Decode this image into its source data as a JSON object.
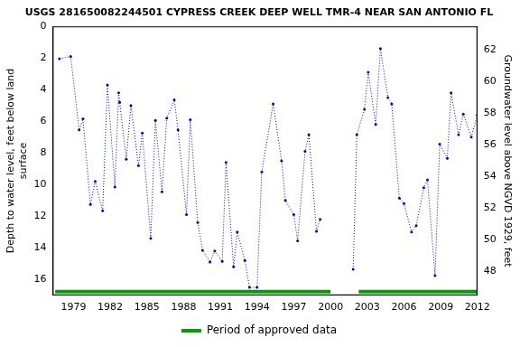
{
  "chart_data": {
    "type": "line",
    "title": "USGS 281650082244501 CYPRESS CREEK DEEP WELL TMR-4 NEAR SAN ANTONIO FL",
    "y_label": [
      "Depth to water level, feet below land",
      "surface"
    ],
    "y2_label": "Groundwater level above NGVD 1929, feet",
    "x": [
      1977.85,
      1978.77,
      1979.46,
      1979.77,
      1980.38,
      1980.77,
      1981.38,
      1981.77,
      1982.38,
      1982.69,
      1982.77,
      1983.31,
      1983.69,
      1984.31,
      1984.62,
      1985.31,
      1985.69,
      1986.23,
      1986.62,
      1987.23,
      1987.54,
      1988.23,
      1988.54,
      1989.15,
      1989.54,
      1990.15,
      1990.54,
      1991.15,
      1991.46,
      1992.08,
      1992.38,
      1993.0,
      1993.38,
      1994.0,
      1994.38,
      1995.31,
      1996.0,
      1996.31,
      1997.0,
      1997.31,
      1997.92,
      1998.23,
      1998.85,
      1999.15,
      2000.5,
      2001.85,
      2002.15,
      2002.77,
      2003.08,
      2003.69,
      2004.08,
      2004.69,
      2005.0,
      2005.62,
      2006.0,
      2006.62,
      2007.0,
      2007.62,
      2007.92,
      2008.54,
      2008.92,
      2009.54,
      2009.85,
      2010.46,
      2010.85,
      2011.5,
      2012.0
    ],
    "series": [
      {
        "color": "#0000cc",
        "marker": "circle",
        "line_style": "dotted",
        "values": [
          2.05,
          1.9,
          6.55,
          5.85,
          11.25,
          9.8,
          11.65,
          3.7,
          10.15,
          4.2,
          4.8,
          8.4,
          5.0,
          8.8,
          6.75,
          13.4,
          5.95,
          10.45,
          5.8,
          4.65,
          6.55,
          11.9,
          5.9,
          12.4,
          14.15,
          14.9,
          14.2,
          14.85,
          8.6,
          15.2,
          13.0,
          14.8,
          16.5,
          16.5,
          9.2,
          4.9,
          8.5,
          11.0,
          11.9,
          13.55,
          7.9,
          6.85,
          12.95,
          12.2,
          null,
          15.35,
          6.85,
          5.25,
          2.9,
          6.2,
          1.4,
          4.5,
          4.9,
          10.85,
          11.2,
          13.0,
          12.6,
          10.2,
          9.7,
          15.75,
          7.45,
          8.35,
          4.2,
          6.85,
          5.55,
          7.0,
          5.6
        ]
      }
    ],
    "xlim": [
      1977.3,
      2012.0
    ],
    "xticks": [
      1979,
      1982,
      1985,
      1988,
      1991,
      1994,
      1997,
      2000,
      2003,
      2006,
      2009,
      2012
    ],
    "ylim": [
      17,
      0
    ],
    "yticks": [
      0,
      2,
      4,
      6,
      8,
      10,
      12,
      14,
      16
    ],
    "y2lim": [
      46.5,
      63.5
    ],
    "y2ticks": [
      48,
      50,
      52,
      54,
      56,
      58,
      60,
      62
    ],
    "approved_periods": {
      "name": "Period of approved data",
      "color": "#00a000",
      "ranges": [
        [
          1977.5,
          2000.0
        ],
        [
          2002.3,
          2012.0
        ]
      ]
    },
    "legend": "bottom",
    "grid": false
  }
}
